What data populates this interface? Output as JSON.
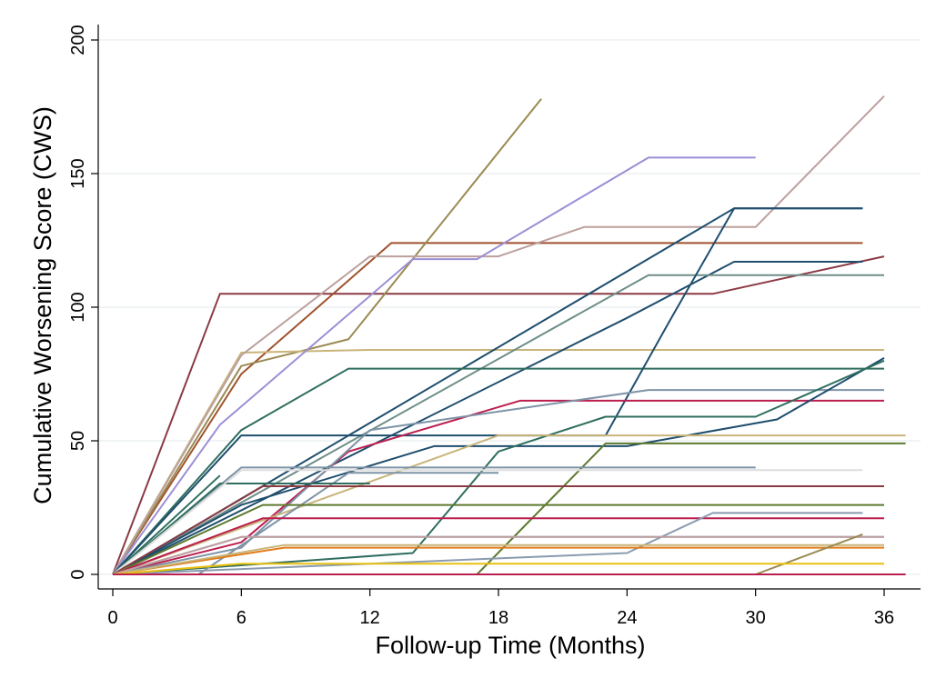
{
  "chart_data": {
    "type": "line",
    "title": "",
    "xlabel": "Follow-up Time (Months)",
    "ylabel": "Cumulative Worsening Score (CWS)",
    "xlim": [
      0,
      37
    ],
    "ylim": [
      0,
      200
    ],
    "xticks": [
      0,
      6,
      12,
      18,
      24,
      30,
      36
    ],
    "yticks": [
      0,
      50,
      100,
      150,
      200
    ],
    "grid": "horizontal",
    "legend": "none",
    "series": [
      {
        "color": "#8b3a44",
        "x": [
          0,
          5,
          28,
          36
        ],
        "y": [
          0,
          105,
          105,
          119
        ]
      },
      {
        "color": "#a0522d",
        "x": [
          0,
          6,
          13,
          35
        ],
        "y": [
          0,
          75,
          124,
          124
        ]
      },
      {
        "color": "#9a8a52",
        "x": [
          0,
          6,
          11,
          20
        ],
        "y": [
          0,
          78,
          88,
          178
        ]
      },
      {
        "color": "#c9b47a",
        "x": [
          0,
          6,
          12,
          36
        ],
        "y": [
          0,
          83,
          84,
          84
        ]
      },
      {
        "color": "#bca09e",
        "x": [
          0,
          6,
          12,
          18,
          22,
          30,
          36
        ],
        "y": [
          0,
          82,
          119,
          119,
          130,
          130,
          179
        ]
      },
      {
        "color": "#9c8fd6",
        "x": [
          0,
          5,
          14,
          17,
          25,
          30
        ],
        "y": [
          0,
          56,
          118,
          118,
          156,
          156
        ]
      },
      {
        "color": "#1f4e6e",
        "x": [
          0,
          29,
          35
        ],
        "y": [
          0,
          137,
          137
        ]
      },
      {
        "color": "#1f4e6e",
        "x": [
          0,
          24,
          29,
          35
        ],
        "y": [
          0,
          96,
          117,
          117
        ]
      },
      {
        "color": "#6e8e88",
        "x": [
          0,
          25,
          36
        ],
        "y": [
          0,
          112,
          112
        ]
      },
      {
        "color": "#2f6e5f",
        "x": [
          0,
          6,
          11,
          36
        ],
        "y": [
          0,
          54,
          77,
          77
        ]
      },
      {
        "color": "#1f4e6e",
        "x": [
          0,
          6,
          15,
          23,
          26,
          29,
          35
        ],
        "y": [
          0,
          52,
          52,
          52,
          95,
          137,
          137
        ]
      },
      {
        "color": "#bb1f4f",
        "x": [
          0,
          6,
          11,
          19,
          36
        ],
        "y": [
          0,
          12,
          46,
          65,
          65
        ]
      },
      {
        "color": "#7d93a6",
        "x": [
          0,
          6,
          12,
          25,
          36
        ],
        "y": [
          0,
          10,
          54,
          69,
          69
        ]
      },
      {
        "color": "#1f4e6e",
        "x": [
          0,
          6,
          15,
          24,
          31,
          36
        ],
        "y": [
          0,
          26,
          48,
          48,
          58,
          81
        ]
      },
      {
        "color": "#2f6e5f",
        "x": [
          0,
          14,
          18,
          23,
          30,
          36
        ],
        "y": [
          0,
          8,
          46,
          59,
          59,
          80
        ]
      },
      {
        "color": "#c9b47a",
        "x": [
          0,
          18,
          37
        ],
        "y": [
          0,
          52,
          52
        ]
      },
      {
        "color": "#5d7a2e",
        "x": [
          0,
          17,
          23,
          37
        ],
        "y": [
          0,
          0,
          49,
          49
        ]
      },
      {
        "color": "#7d93a6",
        "x": [
          0,
          6,
          30
        ],
        "y": [
          0,
          40,
          40
        ]
      },
      {
        "color": "#7d93a6",
        "x": [
          0,
          4,
          11,
          18
        ],
        "y": [
          0,
          0,
          38,
          38
        ]
      },
      {
        "color": "#2f6e5f",
        "x": [
          0,
          5
        ],
        "y": [
          0,
          37
        ]
      },
      {
        "color": "#2f6e5f",
        "x": [
          0,
          5,
          12
        ],
        "y": [
          0,
          34,
          34
        ]
      },
      {
        "color": "#dddddd",
        "x": [
          0,
          6,
          35
        ],
        "y": [
          0,
          39,
          39
        ]
      },
      {
        "color": "#8b3a44",
        "x": [
          0,
          7,
          36
        ],
        "y": [
          0,
          33,
          33
        ]
      },
      {
        "color": "#5d7a2e",
        "x": [
          0,
          7,
          36
        ],
        "y": [
          0,
          26,
          26
        ]
      },
      {
        "color": "#bb1f4f",
        "x": [
          0,
          7,
          36
        ],
        "y": [
          0,
          21,
          21
        ]
      },
      {
        "color": "#8a9bb0",
        "x": [
          0,
          24,
          28,
          35
        ],
        "y": [
          0,
          8,
          23,
          23
        ]
      },
      {
        "color": "#9c8fd6",
        "x": [
          0,
          6,
          36
        ],
        "y": [
          0,
          14,
          14
        ]
      },
      {
        "color": "#bca09e",
        "x": [
          0,
          6,
          36
        ],
        "y": [
          0,
          14,
          14
        ]
      },
      {
        "color": "#e07c1a",
        "x": [
          0,
          8,
          36
        ],
        "y": [
          0,
          10,
          10
        ]
      },
      {
        "color": "#c9b47a",
        "x": [
          0,
          8,
          36
        ],
        "y": [
          0,
          11,
          11
        ]
      },
      {
        "color": "#9a8a52",
        "x": [
          0,
          30,
          35
        ],
        "y": [
          0,
          0,
          15
        ]
      },
      {
        "color": "#e8c010",
        "x": [
          0,
          6,
          36
        ],
        "y": [
          0,
          4,
          4
        ]
      },
      {
        "color": "#a0522d",
        "x": [
          0,
          36
        ],
        "y": [
          0,
          0
        ]
      },
      {
        "color": "#bb1f4f",
        "x": [
          0,
          37
        ],
        "y": [
          0,
          0
        ]
      }
    ]
  }
}
